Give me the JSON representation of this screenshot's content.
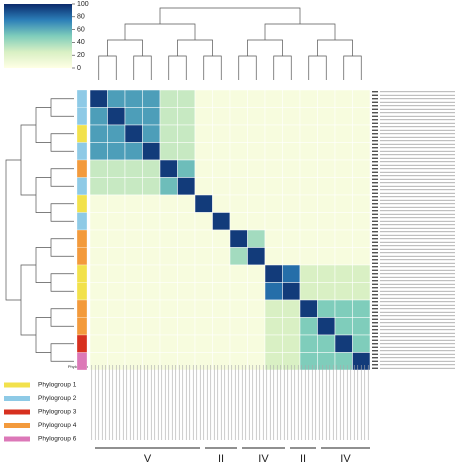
{
  "chart_data": {
    "type": "heatmap",
    "values": [
      [
        95,
        65,
        65,
        65,
        30,
        30,
        5,
        5,
        5,
        5,
        5,
        5,
        5,
        5,
        5,
        5
      ],
      [
        65,
        95,
        65,
        65,
        30,
        30,
        5,
        5,
        5,
        5,
        5,
        5,
        5,
        5,
        5,
        5
      ],
      [
        65,
        65,
        95,
        65,
        30,
        30,
        5,
        5,
        5,
        5,
        5,
        5,
        5,
        5,
        5,
        5
      ],
      [
        65,
        65,
        65,
        95,
        30,
        30,
        5,
        5,
        5,
        5,
        5,
        5,
        5,
        5,
        5,
        5
      ],
      [
        30,
        30,
        30,
        30,
        95,
        55,
        5,
        5,
        5,
        5,
        5,
        5,
        5,
        5,
        5,
        5
      ],
      [
        30,
        30,
        30,
        30,
        55,
        95,
        5,
        5,
        5,
        5,
        5,
        5,
        5,
        5,
        5,
        5
      ],
      [
        5,
        5,
        5,
        5,
        5,
        5,
        95,
        5,
        5,
        5,
        5,
        5,
        5,
        5,
        5,
        5
      ],
      [
        5,
        5,
        5,
        5,
        5,
        5,
        5,
        95,
        5,
        5,
        5,
        5,
        5,
        5,
        5,
        5
      ],
      [
        5,
        5,
        5,
        5,
        5,
        5,
        5,
        5,
        95,
        40,
        5,
        5,
        5,
        5,
        5,
        5
      ],
      [
        5,
        5,
        5,
        5,
        5,
        5,
        5,
        5,
        40,
        95,
        5,
        5,
        5,
        5,
        5,
        5
      ],
      [
        5,
        5,
        5,
        5,
        5,
        5,
        5,
        5,
        5,
        5,
        95,
        80,
        25,
        25,
        25,
        25
      ],
      [
        5,
        5,
        5,
        5,
        5,
        5,
        5,
        5,
        5,
        5,
        80,
        95,
        25,
        25,
        25,
        25
      ],
      [
        5,
        5,
        5,
        5,
        5,
        5,
        5,
        5,
        5,
        5,
        25,
        25,
        95,
        50,
        50,
        50
      ],
      [
        5,
        5,
        5,
        5,
        5,
        5,
        5,
        5,
        5,
        5,
        25,
        25,
        50,
        95,
        50,
        50
      ],
      [
        5,
        5,
        5,
        5,
        5,
        5,
        5,
        5,
        5,
        5,
        25,
        25,
        50,
        50,
        95,
        50
      ],
      [
        5,
        5,
        5,
        5,
        5,
        5,
        5,
        5,
        5,
        5,
        25,
        25,
        50,
        50,
        50,
        95
      ]
    ],
    "colorscale": [
      "#ffffe5",
      "#d9f0c4",
      "#7fcdbb",
      "#2c7fb8",
      "#0b2a6b"
    ],
    "zlim": [
      0,
      100
    ],
    "zticks": [
      0,
      20,
      40,
      60,
      80,
      100
    ],
    "strip_label": "Phylogroup",
    "row_phylogroup": [
      1,
      1,
      0,
      1,
      3,
      1,
      0,
      1,
      3,
      3,
      0,
      0,
      3,
      3,
      2,
      4
    ],
    "phylogroups": [
      {
        "name": "Phylogroup 1",
        "color": "#f2e14c"
      },
      {
        "name": "Phylogroup 2",
        "color": "#8ecae6"
      },
      {
        "name": "Phylogroup 3",
        "color": "#d7301f"
      },
      {
        "name": "Phylogroup 4",
        "color": "#f39a3c"
      },
      {
        "name": "Phylogroup 6",
        "color": "#dc78b8"
      }
    ],
    "column_groups": [
      "V",
      "II",
      "IV",
      "II",
      "IV"
    ]
  }
}
